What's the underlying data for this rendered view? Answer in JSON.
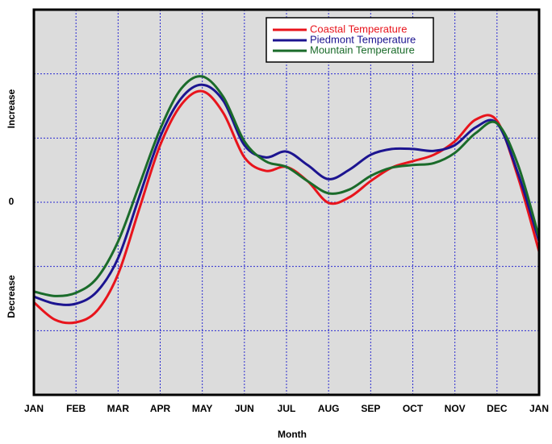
{
  "chart_data": {
    "type": "line",
    "xlabel": "Month",
    "ylabels": {
      "top": "Increase",
      "bottom": "Decrease"
    },
    "x": [
      0,
      0.5,
      1,
      1.5,
      2,
      2.5,
      3,
      3.5,
      4,
      4.5,
      5,
      5.5,
      6,
      6.5,
      7,
      7.5,
      8,
      8.5,
      9,
      9.5,
      10,
      10.5,
      11,
      11.5,
      12
    ],
    "xlim": [
      0,
      12
    ],
    "xticks": [
      {
        "value": 0,
        "label": "JAN"
      },
      {
        "value": 1,
        "label": "FEB"
      },
      {
        "value": 2,
        "label": "MAR"
      },
      {
        "value": 3,
        "label": "APR"
      },
      {
        "value": 4,
        "label": "MAY"
      },
      {
        "value": 5,
        "label": "JUN"
      },
      {
        "value": 6,
        "label": "JUL"
      },
      {
        "value": 7,
        "label": "AUG"
      },
      {
        "value": 8,
        "label": "SEP"
      },
      {
        "value": 9,
        "label": "OCT"
      },
      {
        "value": 10,
        "label": "NOV"
      },
      {
        "value": 11,
        "label": "DEC"
      },
      {
        "value": 12,
        "label": "JAN"
      }
    ],
    "ylim": [
      -3,
      3
    ],
    "yticks": [
      0
    ],
    "ygrid": [
      -2,
      -1,
      0,
      1,
      2
    ],
    "grid": true,
    "legend": "top-right",
    "series": [
      {
        "name": "Coastal Temperature",
        "color": "#e8141c",
        "values": [
          -1.56,
          -1.83,
          -1.87,
          -1.69,
          -1.12,
          -0.11,
          0.89,
          1.52,
          1.73,
          1.39,
          0.7,
          0.49,
          0.55,
          0.33,
          -0.01,
          0.08,
          0.33,
          0.54,
          0.64,
          0.74,
          0.95,
          1.29,
          1.27,
          0.39,
          -0.77
        ]
      },
      {
        "name": "Piedmont Temperature",
        "color": "#1c1490",
        "values": [
          -1.47,
          -1.58,
          -1.58,
          -1.39,
          -0.87,
          0.08,
          1.02,
          1.62,
          1.83,
          1.58,
          0.89,
          0.7,
          0.79,
          0.58,
          0.36,
          0.51,
          0.74,
          0.83,
          0.83,
          0.8,
          0.89,
          1.17,
          1.23,
          0.45,
          -0.61
        ]
      },
      {
        "name": "Mountain Temperature",
        "color": "#1a6b2a",
        "values": [
          -1.39,
          -1.46,
          -1.41,
          -1.18,
          -0.61,
          0.26,
          1.14,
          1.77,
          1.96,
          1.64,
          0.95,
          0.64,
          0.55,
          0.33,
          0.14,
          0.2,
          0.41,
          0.54,
          0.58,
          0.61,
          0.77,
          1.08,
          1.23,
          0.58,
          -0.55
        ]
      }
    ]
  }
}
